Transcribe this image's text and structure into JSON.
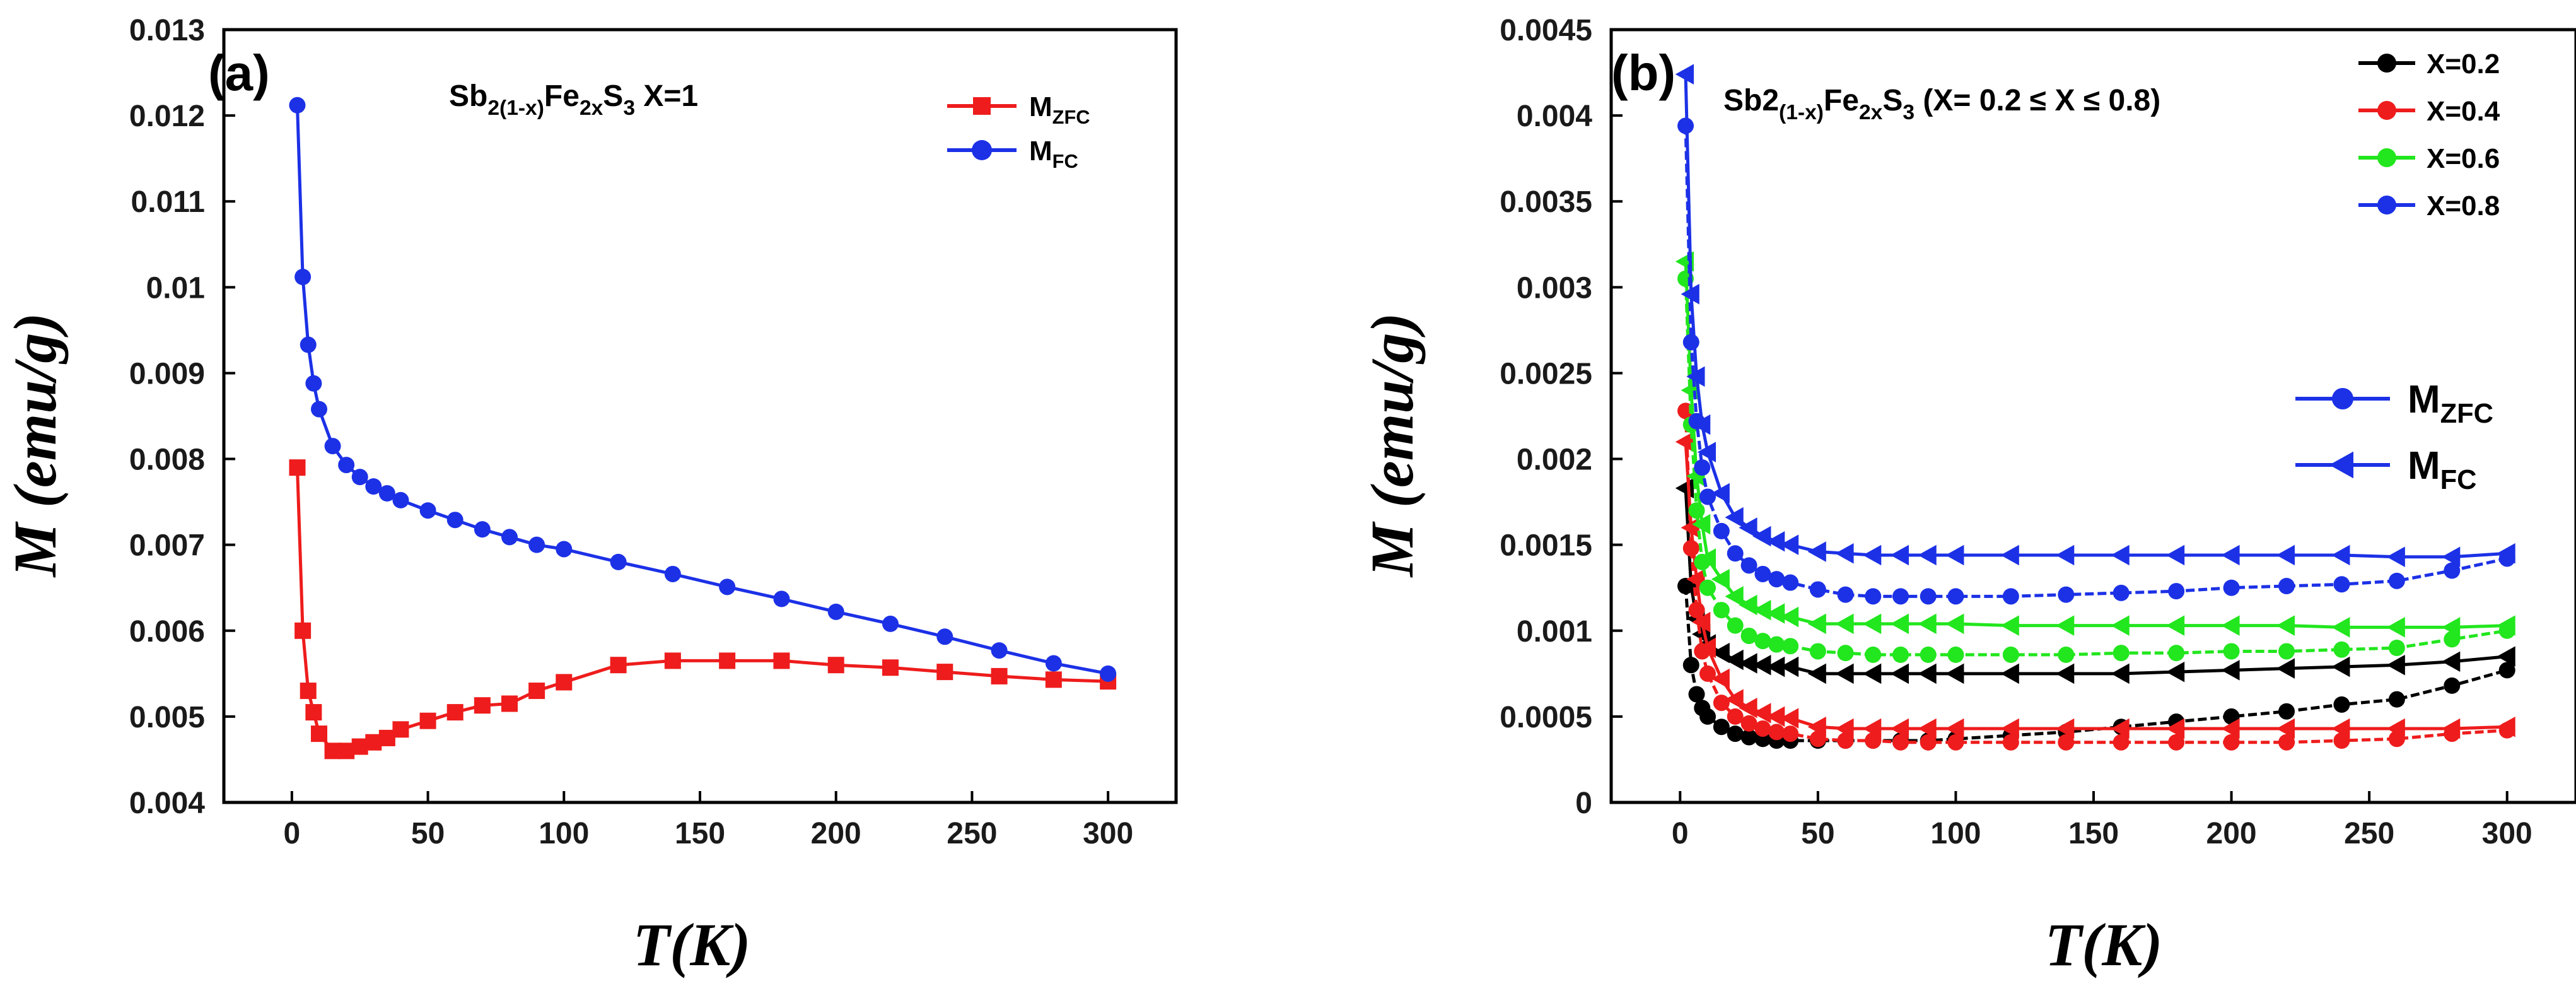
{
  "chart_data": [
    {
      "id": "a",
      "type": "line",
      "panel_label": "(a)",
      "title": "Sb2(1-x)Fe2xS3 X=1",
      "title_parts": {
        "base": "Sb",
        "sub1": "2(1-x)",
        "mid": "Fe",
        "sub2": "2x",
        "end": "S",
        "sub3": "3",
        "tail": " X=1"
      },
      "xlabel": "T(K)",
      "ylabel": "M (emu/g)",
      "xlim": [
        -25,
        325
      ],
      "ylim": [
        0.004,
        0.013
      ],
      "xticks": [
        0,
        50,
        100,
        150,
        200,
        250,
        300
      ],
      "xtick_labels": [
        "0",
        "50",
        "100",
        "150",
        "200",
        "250",
        "300"
      ],
      "yticks": [
        0.004,
        0.005,
        0.006,
        0.007,
        0.008,
        0.009,
        0.01,
        0.011,
        0.012,
        0.013
      ],
      "ytick_labels": [
        "0.004",
        "0.005",
        "0.006",
        "0.007",
        "0.008",
        "0.009",
        "0.01",
        "0.011",
        "0.012",
        "0.013"
      ],
      "legend_position": "top-right",
      "series": [
        {
          "name": "MZFC",
          "label_main": "M",
          "label_sub": "ZFC",
          "color": "#ee1c1c",
          "marker": "square",
          "x": [
            2,
            4,
            6,
            8,
            10,
            15,
            20,
            25,
            30,
            35,
            40,
            50,
            60,
            70,
            80,
            90,
            100,
            120,
            140,
            160,
            180,
            200,
            220,
            240,
            260,
            280,
            300
          ],
          "y": [
            0.0079,
            0.006,
            0.0053,
            0.00505,
            0.0048,
            0.0046,
            0.0046,
            0.00465,
            0.0047,
            0.00475,
            0.00485,
            0.00495,
            0.00505,
            0.00513,
            0.00515,
            0.0053,
            0.0054,
            0.0056,
            0.00565,
            0.00565,
            0.00565,
            0.0056,
            0.00557,
            0.00552,
            0.00547,
            0.00543,
            0.00541
          ]
        },
        {
          "name": "MFC",
          "label_main": "M",
          "label_sub": "FC",
          "color": "#1c31e6",
          "marker": "circle",
          "x": [
            2,
            4,
            6,
            8,
            10,
            15,
            20,
            25,
            30,
            35,
            40,
            50,
            60,
            70,
            80,
            90,
            100,
            120,
            140,
            160,
            180,
            200,
            220,
            240,
            260,
            280,
            300
          ],
          "y": [
            0.01212,
            0.01012,
            0.00933,
            0.00888,
            0.00858,
            0.00815,
            0.00793,
            0.00779,
            0.00768,
            0.0076,
            0.00752,
            0.0074,
            0.00729,
            0.00718,
            0.00709,
            0.007,
            0.00695,
            0.0068,
            0.00666,
            0.00651,
            0.00637,
            0.00622,
            0.00608,
            0.00593,
            0.00577,
            0.00562,
            0.0055
          ]
        }
      ]
    },
    {
      "id": "b",
      "type": "line",
      "panel_label": "(b)",
      "title": "Sb2(1-x)Fe2xS3 (X= 0.2 ≤ X ≤ 0.8)",
      "title_parts": {
        "base": "Sb2",
        "sub1": "(1-x)",
        "mid": "Fe",
        "sub2": "2x",
        "end": "S",
        "sub3": "3",
        "tail": " (X= 0.2 ≤ X ≤ 0.8)"
      },
      "xlabel": "T(K)",
      "ylabel": "M (emu/g)",
      "xlim": [
        -25,
        325
      ],
      "ylim": [
        0,
        0.0045
      ],
      "xticks": [
        0,
        50,
        100,
        150,
        200,
        250,
        300
      ],
      "xtick_labels": [
        "0",
        "50",
        "100",
        "150",
        "200",
        "250",
        "300"
      ],
      "yticks": [
        0,
        0.0005,
        0.001,
        0.0015,
        0.002,
        0.0025,
        0.003,
        0.0035,
        0.004,
        0.0045
      ],
      "ytick_labels": [
        "0",
        "0.0005",
        "0.001",
        "0.0015",
        "0.002",
        "0.0025",
        "0.003",
        "0.0035",
        "0.004",
        "0.0045"
      ],
      "legend_position": "top-right",
      "type_legend": [
        {
          "label_main": "M",
          "label_sub": "ZFC",
          "marker": "circle",
          "color": "#1c31e6"
        },
        {
          "label_main": "M",
          "label_sub": "FC",
          "marker": "triangle-left",
          "color": "#1c31e6"
        }
      ],
      "series": [
        {
          "name": "X=0.2",
          "color": "#000000",
          "curve": "ZFC",
          "marker": "circle",
          "x": [
            2,
            4,
            6,
            8,
            10,
            15,
            20,
            25,
            30,
            35,
            40,
            50,
            60,
            70,
            80,
            90,
            100,
            120,
            140,
            160,
            180,
            200,
            220,
            240,
            260,
            280,
            300
          ],
          "y": [
            0.00126,
            0.0008,
            0.00063,
            0.00055,
            0.0005,
            0.00044,
            0.0004,
            0.00038,
            0.00037,
            0.00036,
            0.00036,
            0.00036,
            0.00036,
            0.00036,
            0.00036,
            0.00036,
            0.00037,
            0.00039,
            0.00041,
            0.00044,
            0.00047,
            0.0005,
            0.00053,
            0.00057,
            0.0006,
            0.00068,
            0.00077
          ]
        },
        {
          "name": "X=0.2",
          "color": "#000000",
          "curve": "FC",
          "marker": "triangle-left",
          "x": [
            2,
            4,
            6,
            8,
            10,
            15,
            20,
            25,
            30,
            35,
            40,
            50,
            60,
            70,
            80,
            90,
            100,
            120,
            140,
            160,
            180,
            200,
            220,
            240,
            260,
            280,
            300
          ],
          "y": [
            0.00183,
            0.00126,
            0.00107,
            0.00098,
            0.00092,
            0.00087,
            0.00083,
            0.00081,
            0.0008,
            0.00079,
            0.00079,
            0.00075,
            0.00075,
            0.00075,
            0.00075,
            0.00075,
            0.00075,
            0.00075,
            0.00075,
            0.00075,
            0.00076,
            0.00077,
            0.00078,
            0.00079,
            0.0008,
            0.00082,
            0.00085
          ]
        },
        {
          "name": "X=0.4",
          "color": "#ee1c1c",
          "curve": "ZFC",
          "marker": "circle",
          "x": [
            2,
            4,
            6,
            8,
            10,
            15,
            20,
            25,
            30,
            35,
            40,
            50,
            60,
            70,
            80,
            90,
            100,
            120,
            140,
            160,
            180,
            200,
            220,
            240,
            260,
            280,
            300
          ],
          "y": [
            0.00228,
            0.00148,
            0.00112,
            0.00088,
            0.00075,
            0.00058,
            0.0005,
            0.00046,
            0.00043,
            0.00041,
            0.0004,
            0.00037,
            0.00036,
            0.00036,
            0.00035,
            0.00035,
            0.00035,
            0.00035,
            0.00035,
            0.00035,
            0.00035,
            0.00035,
            0.00035,
            0.00036,
            0.00037,
            0.0004,
            0.00042
          ]
        },
        {
          "name": "X=0.4",
          "color": "#ee1c1c",
          "curve": "FC",
          "marker": "triangle-left",
          "x": [
            2,
            4,
            6,
            8,
            10,
            15,
            20,
            25,
            30,
            35,
            40,
            50,
            60,
            70,
            80,
            90,
            100,
            120,
            140,
            160,
            180,
            200,
            220,
            240,
            260,
            280,
            300
          ],
          "y": [
            0.0021,
            0.0016,
            0.0013,
            0.00105,
            0.0009,
            0.00072,
            0.0006,
            0.00055,
            0.00052,
            0.0005,
            0.00049,
            0.00044,
            0.00043,
            0.00043,
            0.00043,
            0.00043,
            0.00043,
            0.00043,
            0.00043,
            0.00043,
            0.00043,
            0.00043,
            0.00043,
            0.00043,
            0.00043,
            0.00043,
            0.00044
          ]
        },
        {
          "name": "X=0.6",
          "color": "#22e61e",
          "curve": "ZFC",
          "marker": "circle",
          "x": [
            2,
            4,
            6,
            8,
            10,
            15,
            20,
            25,
            30,
            35,
            40,
            50,
            60,
            70,
            80,
            90,
            100,
            120,
            140,
            160,
            180,
            200,
            220,
            240,
            260,
            280,
            300
          ],
          "y": [
            0.00305,
            0.0022,
            0.0017,
            0.0014,
            0.00125,
            0.00112,
            0.00103,
            0.00097,
            0.00094,
            0.00092,
            0.00091,
            0.00088,
            0.00087,
            0.00086,
            0.00086,
            0.00086,
            0.00086,
            0.00086,
            0.00086,
            0.00087,
            0.00087,
            0.00088,
            0.00088,
            0.00089,
            0.0009,
            0.00095,
            0.001
          ]
        },
        {
          "name": "X=0.6",
          "color": "#22e61e",
          "curve": "FC",
          "marker": "triangle-left",
          "x": [
            2,
            4,
            6,
            8,
            10,
            15,
            20,
            25,
            30,
            35,
            40,
            50,
            60,
            70,
            80,
            90,
            100,
            120,
            140,
            160,
            180,
            200,
            220,
            240,
            260,
            280,
            300
          ],
          "y": [
            0.00315,
            0.0024,
            0.0019,
            0.00162,
            0.00142,
            0.0013,
            0.0012,
            0.00115,
            0.00112,
            0.0011,
            0.00108,
            0.00104,
            0.00104,
            0.00104,
            0.00104,
            0.00104,
            0.00104,
            0.00103,
            0.00103,
            0.00103,
            0.00103,
            0.00103,
            0.00103,
            0.00102,
            0.00102,
            0.00102,
            0.00103
          ]
        },
        {
          "name": "X=0.8",
          "color": "#1c31e6",
          "curve": "ZFC",
          "marker": "circle",
          "x": [
            2,
            4,
            6,
            8,
            10,
            15,
            20,
            25,
            30,
            35,
            40,
            50,
            60,
            70,
            80,
            90,
            100,
            120,
            140,
            160,
            180,
            200,
            220,
            240,
            260,
            280,
            300
          ],
          "y": [
            0.00394,
            0.00268,
            0.00222,
            0.00195,
            0.00178,
            0.00158,
            0.00145,
            0.00138,
            0.00133,
            0.0013,
            0.00128,
            0.00124,
            0.00121,
            0.0012,
            0.0012,
            0.0012,
            0.0012,
            0.0012,
            0.00121,
            0.00122,
            0.00123,
            0.00125,
            0.00126,
            0.00127,
            0.00129,
            0.00135,
            0.00142
          ]
        },
        {
          "name": "X=0.8",
          "color": "#1c31e6",
          "curve": "FC",
          "marker": "triangle-left",
          "x": [
            2,
            4,
            6,
            8,
            10,
            15,
            20,
            25,
            30,
            35,
            40,
            50,
            60,
            70,
            80,
            90,
            100,
            120,
            140,
            160,
            180,
            200,
            220,
            240,
            260,
            280,
            300
          ],
          "y": [
            0.00424,
            0.00296,
            0.00248,
            0.0022,
            0.00204,
            0.0018,
            0.00166,
            0.0016,
            0.00155,
            0.00152,
            0.0015,
            0.00146,
            0.00145,
            0.00144,
            0.00144,
            0.00144,
            0.00144,
            0.00144,
            0.00144,
            0.00144,
            0.00144,
            0.00144,
            0.00144,
            0.00144,
            0.00143,
            0.00143,
            0.00145
          ]
        }
      ],
      "legend": [
        {
          "label": "X=0.2",
          "color": "#000000"
        },
        {
          "label": "X=0.4",
          "color": "#ee1c1c"
        },
        {
          "label": "X=0.6",
          "color": "#22e61e"
        },
        {
          "label": "X=0.8",
          "color": "#1c31e6"
        }
      ]
    }
  ]
}
